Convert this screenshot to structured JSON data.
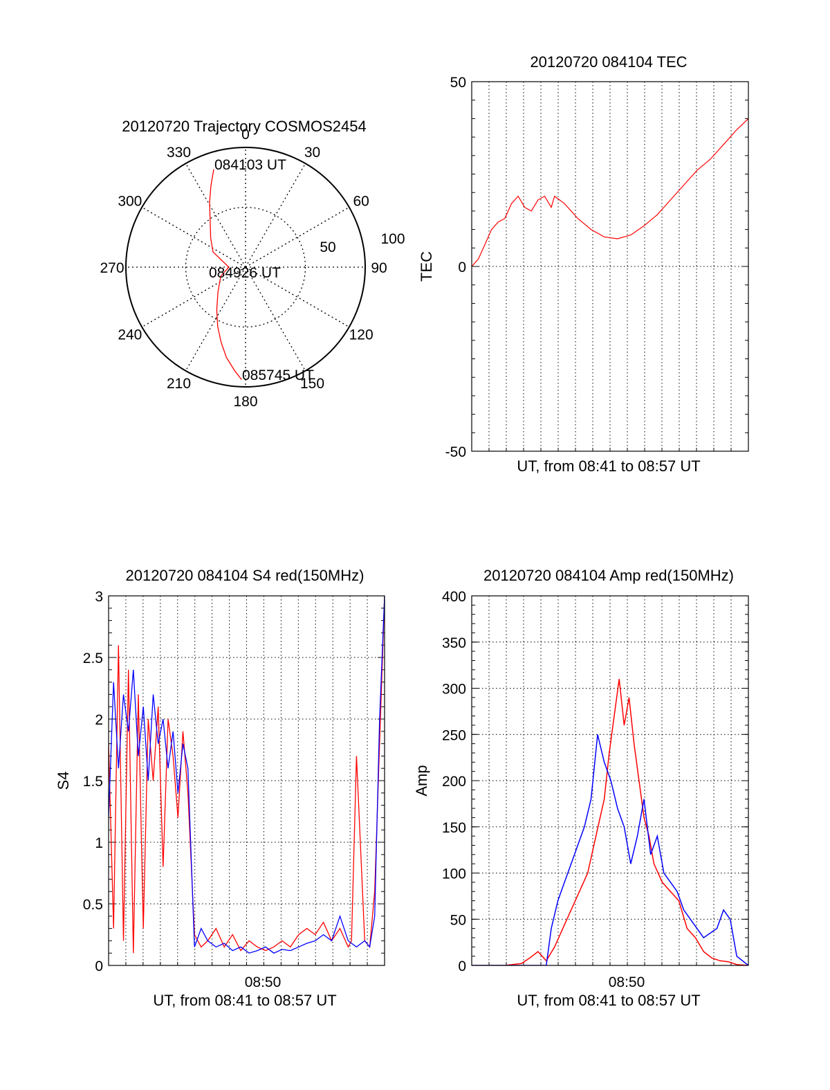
{
  "colors": {
    "red": "#ff0000",
    "blue": "#0000ff",
    "axis": "#000000",
    "grid": "#000000",
    "background": "#ffffff"
  },
  "chart_data": [
    {
      "id": "trajectory",
      "type": "scatter",
      "projection": "polar",
      "title": "20120720 Trajectory COSMOS2454",
      "azimuth_labels": [
        "0",
        "30",
        "60",
        "90",
        "120",
        "150",
        "180",
        "210",
        "240",
        "270",
        "300",
        "330"
      ],
      "radius_labels": [
        "50",
        "100"
      ],
      "rlim": [
        0,
        100
      ],
      "grid": true,
      "annotations": [
        "084103 UT",
        "084926 UT",
        "085745 UT"
      ],
      "series": [
        {
          "color": "red",
          "azimuth_deg": [
            342,
            337,
            331,
            322,
            310,
            295,
            270,
            250,
            228,
            214,
            205,
            198,
            192,
            186,
            182
          ],
          "zenith_dist": [
            86,
            74,
            62,
            48,
            38,
            30,
            14,
            22,
            31,
            43,
            55,
            66,
            77,
            87,
            94
          ]
        }
      ]
    },
    {
      "id": "tec",
      "type": "line",
      "title": "20120720 084104 TEC",
      "xlabel": "UT, from 08:41 to 08:57 UT",
      "ylabel": "TEC",
      "ylim": [
        -50,
        50
      ],
      "yticks": [
        "50",
        "0",
        "-50"
      ],
      "xlim": [
        0,
        16.7
      ],
      "grid": true,
      "series": [
        {
          "color": "red",
          "x": [
            0,
            0.4,
            0.8,
            1.2,
            1.6,
            2.0,
            2.4,
            2.8,
            3.2,
            3.6,
            4.0,
            4.4,
            4.8,
            5.0,
            5.6,
            6.4,
            7.2,
            8.0,
            8.8,
            9.6,
            10.4,
            11.2,
            12.0,
            12.8,
            13.6,
            14.4,
            15.2,
            16.0,
            16.7
          ],
          "y": [
            0,
            2,
            6,
            10,
            12,
            13,
            17,
            19,
            16,
            15,
            18,
            19,
            16,
            19,
            17,
            13,
            10,
            8,
            7.5,
            8.5,
            11,
            14,
            18,
            22,
            26,
            29,
            33,
            37,
            40
          ]
        }
      ]
    },
    {
      "id": "s4",
      "type": "line",
      "title": "20120720 084104 S4 red(150MHz)",
      "xlabel": "UT, from 08:41 to 08:57 UT",
      "ylabel": "S4",
      "ylim": [
        0,
        3
      ],
      "yticks": [
        "0",
        "0.5",
        "1",
        "1.5",
        "2",
        "2.5",
        "3"
      ],
      "xtick_label": "08:50",
      "xlim": [
        0,
        16.7
      ],
      "grid": true,
      "series": [
        {
          "color": "red",
          "x": [
            0,
            0.3,
            0.6,
            0.9,
            1.2,
            1.5,
            1.8,
            2.1,
            2.4,
            2.7,
            3.0,
            3.3,
            3.6,
            3.9,
            4.2,
            4.5,
            4.8,
            5.2,
            5.6,
            6.0,
            6.5,
            7.0,
            7.5,
            8.0,
            8.5,
            9.0,
            9.5,
            10.0,
            10.5,
            11.0,
            11.5,
            12.0,
            12.5,
            13.0,
            13.5,
            14.0,
            14.5,
            14.7,
            15.0,
            15.5,
            15.8,
            16.1,
            16.4,
            16.7
          ],
          "y": [
            1.8,
            0.3,
            2.6,
            0.2,
            2.4,
            0.1,
            2.2,
            0.3,
            2.0,
            1.5,
            2.1,
            0.8,
            2.0,
            1.7,
            1.2,
            1.9,
            1.4,
            0.25,
            0.15,
            0.2,
            0.3,
            0.15,
            0.25,
            0.12,
            0.2,
            0.15,
            0.12,
            0.15,
            0.2,
            0.15,
            0.25,
            0.3,
            0.25,
            0.35,
            0.2,
            0.3,
            0.15,
            0.2,
            1.7,
            0.2,
            0.15,
            0.6,
            1.8,
            3.0
          ]
        },
        {
          "color": "blue",
          "x": [
            0,
            0.3,
            0.6,
            0.9,
            1.2,
            1.5,
            1.8,
            2.1,
            2.4,
            2.7,
            3.0,
            3.3,
            3.6,
            3.9,
            4.2,
            4.5,
            4.8,
            5.2,
            5.6,
            6.0,
            6.5,
            7.0,
            7.5,
            8.0,
            8.5,
            9.0,
            9.5,
            10.0,
            10.5,
            11.0,
            11.5,
            12.0,
            12.5,
            13.0,
            13.5,
            14.0,
            14.5,
            15.0,
            15.5,
            15.8,
            16.1,
            16.4,
            16.7
          ],
          "y": [
            1.2,
            2.3,
            1.6,
            2.2,
            1.9,
            2.4,
            1.7,
            2.1,
            1.5,
            2.2,
            1.8,
            2.0,
            1.6,
            1.9,
            1.4,
            1.8,
            1.6,
            0.15,
            0.3,
            0.2,
            0.15,
            0.18,
            0.12,
            0.15,
            0.1,
            0.12,
            0.15,
            0.1,
            0.13,
            0.12,
            0.15,
            0.18,
            0.2,
            0.25,
            0.2,
            0.4,
            0.2,
            0.15,
            0.2,
            0.15,
            0.4,
            2.0,
            3.0
          ]
        }
      ]
    },
    {
      "id": "amp",
      "type": "line",
      "title": "20120720 084104 Amp red(150MHz)",
      "xlabel": "UT, from 08:41 to 08:57 UT",
      "ylabel": "Amp",
      "ylim": [
        0,
        400
      ],
      "yticks": [
        "0",
        "50",
        "100",
        "150",
        "200",
        "250",
        "300",
        "350",
        "400"
      ],
      "xtick_label": "08:50",
      "xlim": [
        0,
        16.7
      ],
      "grid": true,
      "series": [
        {
          "color": "red",
          "x": [
            0,
            1,
            2,
            3,
            3.5,
            4,
            4.5,
            5,
            5.5,
            6,
            6.5,
            7,
            7.5,
            8,
            8.3,
            8.6,
            8.9,
            9.2,
            9.5,
            9.8,
            10.1,
            10.4,
            10.7,
            11,
            11.5,
            12,
            12.5,
            13,
            13.5,
            14,
            14.5,
            15,
            15.5,
            16,
            16.7
          ],
          "y": [
            0,
            0,
            0,
            2,
            8,
            15,
            5,
            20,
            40,
            60,
            80,
            100,
            140,
            180,
            230,
            270,
            310,
            260,
            290,
            240,
            200,
            160,
            140,
            110,
            90,
            80,
            70,
            40,
            30,
            15,
            8,
            5,
            4,
            1,
            0
          ]
        },
        {
          "color": "blue",
          "x": [
            0,
            1,
            2,
            3,
            4,
            4.5,
            4.8,
            5.2,
            5.6,
            6.0,
            6.4,
            6.8,
            7.2,
            7.6,
            8.0,
            8.4,
            8.8,
            9.2,
            9.6,
            10.0,
            10.4,
            10.8,
            11.2,
            11.6,
            12.0,
            12.4,
            12.8,
            13.2,
            13.6,
            14.0,
            14.4,
            14.8,
            15.2,
            15.6,
            16.0,
            16.7
          ],
          "y": [
            0,
            0,
            0,
            0,
            0,
            0,
            40,
            70,
            90,
            110,
            130,
            150,
            180,
            250,
            220,
            200,
            170,
            150,
            110,
            140,
            180,
            120,
            140,
            100,
            90,
            80,
            60,
            50,
            40,
            30,
            35,
            40,
            60,
            50,
            10,
            0
          ]
        }
      ]
    }
  ]
}
